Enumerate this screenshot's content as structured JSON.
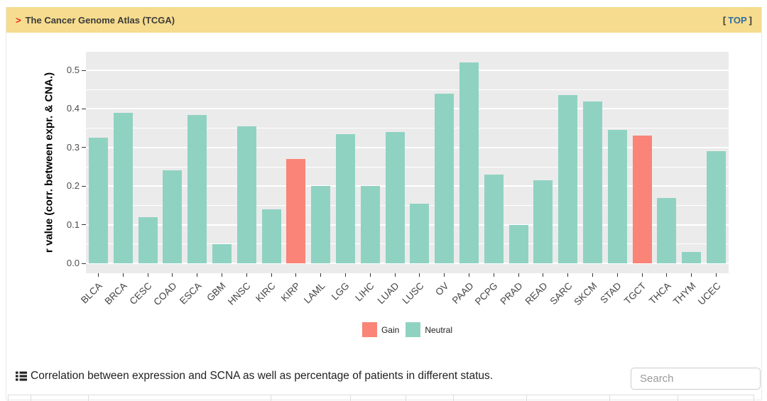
{
  "header": {
    "arrow": ">",
    "title": "The Cancer Genome Atlas (TCGA)",
    "top_bracket_left": "[",
    "top_link": "TOP",
    "top_bracket_right": "]"
  },
  "chart_data": {
    "type": "bar",
    "title": "",
    "xlabel": "",
    "ylabel": "r value (corr. between expr. & CNA.)",
    "ylim": [
      0,
      0.55
    ],
    "yticks": [
      "0.0",
      "0.1",
      "0.2",
      "0.3",
      "0.4",
      "0.5"
    ],
    "grid": true,
    "legend_position": "bottom",
    "plot_background": "#ebebeb",
    "categories": [
      "BLCA",
      "BRCA",
      "CESC",
      "COAD",
      "ESCA",
      "GBM",
      "HNSC",
      "KIRC",
      "KIRP",
      "LAML",
      "LGG",
      "LIHC",
      "LUAD",
      "LUSC",
      "OV",
      "PAAD",
      "PCPG",
      "PRAD",
      "READ",
      "SARC",
      "SKCM",
      "STAD",
      "TGCT",
      "THCA",
      "THYM",
      "UCEC"
    ],
    "values": [
      0.325,
      0.39,
      0.12,
      0.24,
      0.385,
      0.05,
      0.355,
      0.14,
      0.27,
      0.2,
      0.335,
      0.2,
      0.34,
      0.155,
      0.44,
      0.52,
      0.23,
      0.1,
      0.215,
      0.435,
      0.42,
      0.345,
      0.33,
      0.17,
      0.03,
      0.29
    ],
    "status": [
      "Neutral",
      "Neutral",
      "Neutral",
      "Neutral",
      "Neutral",
      "Neutral",
      "Neutral",
      "Neutral",
      "Gain",
      "Neutral",
      "Neutral",
      "Neutral",
      "Neutral",
      "Neutral",
      "Neutral",
      "Neutral",
      "Neutral",
      "Neutral",
      "Neutral",
      "Neutral",
      "Neutral",
      "Neutral",
      "Gain",
      "Neutral",
      "Neutral",
      "Neutral"
    ],
    "colors": {
      "Gain": "#f98477",
      "Neutral": "#8fd2c2"
    },
    "legend": [
      {
        "label": "Gain",
        "status": "Gain"
      },
      {
        "label": "Neutral",
        "status": "Neutral"
      }
    ]
  },
  "caption": {
    "icon": "table-list-icon",
    "text": "Correlation between expression and SCNA as well as percentage of patients in different status."
  },
  "search": {
    "placeholder": "Search"
  },
  "colors": {
    "header_bg": "#f6dc8e",
    "header_text": "#3b3b3b",
    "arrow_red": "#e8291c",
    "link_blue": "#2e6da4",
    "plot_bg": "#ebebeb",
    "gridline": "#ffffff",
    "tick_text": "#4d4d4d"
  }
}
